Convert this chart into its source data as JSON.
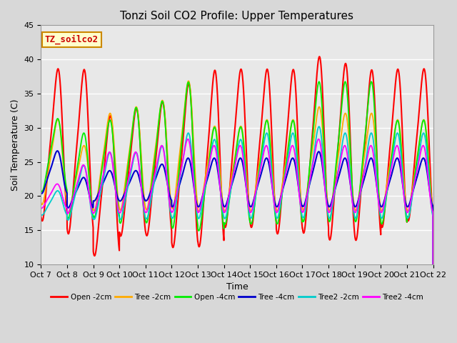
{
  "title": "Tonzi Soil CO2 Profile: Upper Temperatures",
  "xlabel": "Time",
  "ylabel": "Soil Temperature (C)",
  "annotation": "TZ_soilco2",
  "ylim": [
    10,
    45
  ],
  "xlim": [
    0,
    15
  ],
  "xtick_labels": [
    "Oct 7",
    "Oct 8",
    "Oct 9",
    "Oct 10",
    "Oct 11",
    "Oct 12",
    "Oct 13",
    "Oct 14",
    "Oct 15",
    "Oct 16",
    "Oct 17",
    "Oct 18",
    "Oct 19",
    "Oct 20",
    "Oct 21",
    "Oct 22"
  ],
  "series_colors": [
    "#ff0000",
    "#ffaa00",
    "#00ee00",
    "#0000cc",
    "#00cccc",
    "#ff00ff"
  ],
  "series_labels": [
    "Open -2cm",
    "Tree -2cm",
    "Open -4cm",
    "Tree -4cm",
    "Tree2 -2cm",
    "Tree2 -4cm"
  ],
  "background_color": "#e8e8e8",
  "plot_bg_color": "#e8e8e8",
  "title_fontsize": 11,
  "label_fontsize": 9,
  "tick_fontsize": 8
}
